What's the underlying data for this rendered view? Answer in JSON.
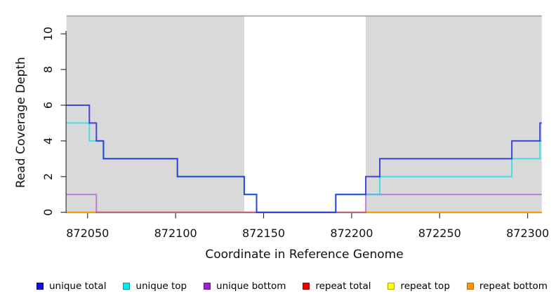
{
  "chart_data": {
    "type": "line",
    "subtype": "step-coverage",
    "title": "",
    "xlabel": "Coordinate in Reference Genome",
    "ylabel": "Read Coverage Depth",
    "xlim": [
      872038,
      872308
    ],
    "ylim": [
      0,
      11.3
    ],
    "x_ticks": [
      872050,
      872100,
      872150,
      872200,
      872250,
      872300
    ],
    "y_ticks": [
      0,
      2,
      4,
      6,
      8,
      10
    ],
    "grid": false,
    "legend_position": "bottom",
    "background_bands": {
      "color": "#d9d9d9",
      "y_range": [
        0,
        11
      ],
      "x_ranges": [
        [
          872038,
          872139
        ],
        [
          872208,
          872308
        ]
      ]
    },
    "top_boundary_line": {
      "y": 11,
      "color": "#a8a8a8"
    },
    "series": [
      {
        "name": "repeat total",
        "color": "#e60026",
        "opacity": 0.85,
        "points": [
          [
            872038,
            0
          ],
          [
            872308,
            0
          ]
        ]
      },
      {
        "name": "repeat top",
        "color": "#fff200",
        "opacity": 0.85,
        "points": [
          [
            872038,
            0
          ],
          [
            872308,
            0
          ]
        ]
      },
      {
        "name": "repeat bottom",
        "color": "#ff9d00",
        "opacity": 0.92,
        "points": [
          [
            872038,
            0
          ],
          [
            872308,
            0
          ]
        ]
      },
      {
        "name": "unique bottom",
        "color": "#9a30d2",
        "opacity": 0.55,
        "points": [
          [
            872038,
            1
          ],
          [
            872055,
            1
          ],
          [
            872055,
            0
          ],
          [
            872208,
            0
          ],
          [
            872208,
            1
          ],
          [
            872308,
            1
          ]
        ]
      },
      {
        "name": "unique top",
        "color": "#00e2e8",
        "opacity": 0.7,
        "points": [
          [
            872038,
            5
          ],
          [
            872051,
            5
          ],
          [
            872051,
            4
          ],
          [
            872059,
            4
          ],
          [
            872059,
            3
          ],
          [
            872101,
            3
          ],
          [
            872101,
            2
          ],
          [
            872139,
            2
          ],
          [
            872139,
            1
          ],
          [
            872146,
            1
          ],
          [
            872146,
            0
          ],
          [
            872191,
            0
          ],
          [
            872191,
            1
          ],
          [
            872216,
            1
          ],
          [
            872216,
            2
          ],
          [
            872291,
            2
          ],
          [
            872291,
            3
          ],
          [
            872307,
            3
          ],
          [
            872307,
            4
          ],
          [
            872308,
            4
          ]
        ]
      },
      {
        "name": "unique total",
        "color": "#2222d6",
        "opacity": 0.82,
        "points": [
          [
            872038,
            6
          ],
          [
            872051,
            6
          ],
          [
            872051,
            5
          ],
          [
            872055,
            5
          ],
          [
            872055,
            4
          ],
          [
            872059,
            4
          ],
          [
            872059,
            3
          ],
          [
            872101,
            3
          ],
          [
            872101,
            2
          ],
          [
            872139,
            2
          ],
          [
            872139,
            1
          ],
          [
            872146,
            1
          ],
          [
            872146,
            0
          ],
          [
            872191,
            0
          ],
          [
            872191,
            1
          ],
          [
            872208,
            1
          ],
          [
            872208,
            2
          ],
          [
            872216,
            2
          ],
          [
            872216,
            3
          ],
          [
            872291,
            3
          ],
          [
            872291,
            4
          ],
          [
            872307,
            4
          ],
          [
            872307,
            5
          ],
          [
            872308,
            5
          ]
        ]
      }
    ],
    "legend": [
      {
        "label": "unique total",
        "color": "#1111dd",
        "border": "#000099"
      },
      {
        "label": "unique top",
        "color": "#00eeee",
        "border": "#009999"
      },
      {
        "label": "unique bottom",
        "color": "#9922cc",
        "border": "#661199"
      },
      {
        "label": "repeat total",
        "color": "#ee0000",
        "border": "#990000"
      },
      {
        "label": "repeat top",
        "color": "#ffff00",
        "border": "#aaaa00"
      },
      {
        "label": "repeat bottom",
        "color": "#ff9900",
        "border": "#b36b00"
      }
    ]
  }
}
